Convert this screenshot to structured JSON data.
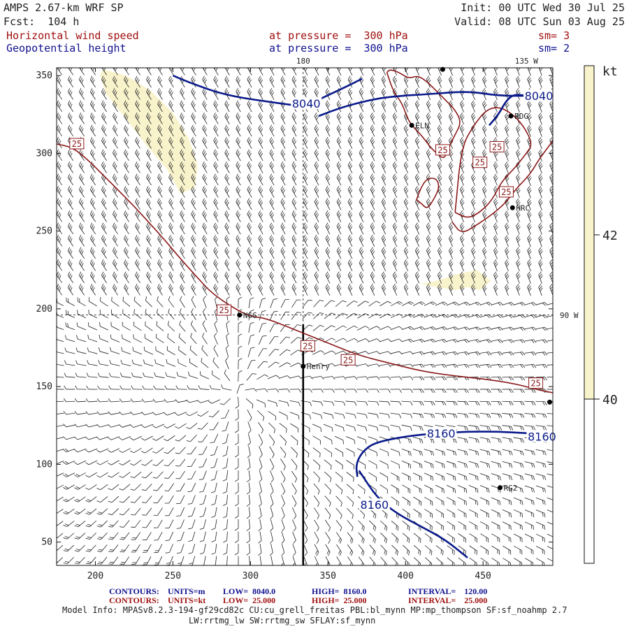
{
  "header": {
    "model": "AMPS 2.67-km WRF SP",
    "forecast": "Fcst:  104 h",
    "init": "Init: 00 UTC Wed 30 Jul 25",
    "valid": "Valid: 08 UTC Sun 03 Aug 25",
    "field1": "Horizontal wind speed",
    "field1_level": "at pressure =  300 hPa",
    "field1_sm": "sm= 3",
    "field2": "Geopotential height",
    "field2_level": "at pressure =  300 hPa",
    "field2_sm": "sm= 2"
  },
  "colors": {
    "wind_contour": "#8b1a1a",
    "height_contour": "#0a1a8a",
    "shade": "#f9f3cc",
    "barb": "#222222"
  },
  "chart_data": {
    "type": "contour",
    "xlim": [
      175,
      495
    ],
    "ylim": [
      35,
      355
    ],
    "x_ticks": [
      200,
      250,
      300,
      350,
      400,
      450
    ],
    "y_ticks": [
      50,
      100,
      150,
      200,
      250,
      300,
      350
    ],
    "meridian_labels": [
      {
        "text": "180",
        "x": 334,
        "y": 355
      },
      {
        "text": "135 W",
        "x": 478,
        "y": 355
      },
      {
        "text": "90 W",
        "x": 495,
        "y": 196
      }
    ],
    "meridians": [
      {
        "x": [
          334,
          334
        ],
        "y": [
          355,
          190
        ],
        "style": "dashed"
      },
      {
        "x": [
          175,
          495
        ],
        "y": [
          196,
          196
        ],
        "style": "dashed"
      },
      {
        "x": [
          334,
          334
        ],
        "y": [
          190,
          35
        ],
        "style": "solid"
      }
    ],
    "height_contours": [
      {
        "label": "8040",
        "x": [
          250,
          262,
          285,
          320,
          335,
          345,
          360,
          372
        ],
        "y": [
          350,
          345,
          337,
          332,
          330,
          335,
          342,
          348
        ]
      },
      {
        "label": "8040",
        "x": [
          344,
          360,
          380,
          396,
          415,
          440,
          460,
          480,
          495
        ],
        "y": [
          324,
          330,
          335,
          337,
          338,
          340,
          337,
          337,
          337
        ]
      },
      {
        "label": "8040",
        "x": [
          454,
          460,
          465,
          470,
          478,
          495
        ],
        "y": [
          318,
          325,
          334,
          338,
          337,
          337
        ]
      },
      {
        "label": "8160",
        "x": [
          369,
          368,
          372,
          380,
          400,
          420,
          440,
          460,
          480,
          495
        ],
        "y": [
          92,
          100,
          108,
          114,
          118,
          120,
          121,
          121,
          120,
          119
        ]
      },
      {
        "label": "8160",
        "x": [
          370,
          382,
          395,
          410,
          425,
          440
        ],
        "y": [
          96,
          78,
          68,
          60,
          52,
          40
        ]
      }
    ],
    "height_labels": [
      {
        "text": "8040",
        "x": 336,
        "y": 332
      },
      {
        "text": "8040",
        "x": 486,
        "y": 337
      },
      {
        "text": "8160",
        "x": 423,
        "y": 120
      },
      {
        "text": "8160",
        "x": 488,
        "y": 118
      },
      {
        "text": "8160",
        "x": 380,
        "y": 74
      }
    ],
    "wind_contours": [
      {
        "label": "25",
        "x": [
          175,
          185,
          195,
          205,
          215,
          225,
          235,
          245,
          255,
          265,
          275,
          290,
          300,
          310,
          330,
          350,
          370,
          390,
          410,
          430,
          450,
          470,
          485,
          495
        ],
        "y": [
          306,
          304,
          296,
          286,
          276,
          266,
          255,
          244,
          232,
          221,
          210,
          200,
          195,
          194,
          186,
          178,
          170,
          165,
          160,
          157,
          155,
          152,
          148,
          146
        ]
      }
    ],
    "wind_islands": [
      {
        "x": [
          388,
          392,
          398,
          402,
          410,
          416,
          420,
          425,
          428,
          432,
          436,
          432,
          426,
          420,
          414,
          408,
          402,
          396,
          390,
          388
        ],
        "y": [
          352,
          340,
          332,
          320,
          312,
          304,
          300,
          296,
          304,
          312,
          320,
          328,
          334,
          340,
          346,
          350,
          348,
          352,
          354,
          352
        ]
      },
      {
        "x": [
          432,
          440,
          448,
          456,
          462,
          470,
          478,
          482,
          476,
          468,
          460,
          452,
          444,
          436,
          432
        ],
        "y": [
          262,
          258,
          262,
          270,
          282,
          290,
          300,
          306,
          318,
          326,
          330,
          328,
          318,
          304,
          262
        ]
      },
      {
        "x": [
          430,
          436,
          446,
          452,
          460,
          466,
          472,
          480,
          486,
          492,
          495
        ],
        "y": [
          256,
          248,
          254,
          258,
          264,
          270,
          278,
          286,
          296,
          304,
          308
        ]
      },
      {
        "x": [
          407,
          410,
          414,
          418,
          422,
          420,
          414,
          410,
          407
        ],
        "y": [
          270,
          268,
          264,
          270,
          278,
          284,
          284,
          278,
          270
        ]
      }
    ],
    "wind_labels": [
      {
        "text": "25",
        "x": 188,
        "y": 306
      },
      {
        "text": "25",
        "x": 283,
        "y": 199
      },
      {
        "text": "25",
        "x": 337,
        "y": 176
      },
      {
        "text": "25",
        "x": 363,
        "y": 167
      },
      {
        "text": "25",
        "x": 424,
        "y": 302
      },
      {
        "text": "25",
        "x": 448,
        "y": 294
      },
      {
        "text": "25",
        "x": 459,
        "y": 304
      },
      {
        "text": "25",
        "x": 465,
        "y": 275
      },
      {
        "text": "25",
        "x": 484,
        "y": 152
      }
    ],
    "shaded_regions": [
      {
        "x": [
          205,
          220,
          236,
          250,
          260,
          266,
          264,
          255,
          246,
          233,
          220,
          207,
          203
        ],
        "y": [
          354,
          350,
          340,
          326,
          310,
          292,
          278,
          274,
          290,
          305,
          322,
          338,
          350
        ]
      },
      {
        "x": [
          410,
          420,
          432,
          446,
          455,
          448,
          440,
          432,
          420,
          410
        ],
        "y": [
          216,
          218,
          222,
          225,
          218,
          212,
          214,
          212,
          214,
          216
        ]
      }
    ],
    "stations": [
      {
        "name": "",
        "x": 424,
        "y": 354
      },
      {
        "name": "RDG",
        "x": 468,
        "y": 324
      },
      {
        "name": "ELN",
        "x": 404,
        "y": 318
      },
      {
        "name": "HRC",
        "x": 469,
        "y": 265
      },
      {
        "name": "NGG",
        "x": 293,
        "y": 196
      },
      {
        "name": "Henry",
        "x": 334,
        "y": 163
      },
      {
        "name": "",
        "x": 493,
        "y": 140
      },
      {
        "name": "RG2",
        "x": 461,
        "y": 85
      }
    ],
    "colorbar": {
      "unit": "kt",
      "labels": [
        "42",
        "40"
      ],
      "colors": [
        "#f9f3cc",
        "#ffffff"
      ]
    }
  },
  "footer": {
    "c1_key": "CONTOURS:",
    "c1_units": "UNITS=m",
    "c1_low": "LOW=  8040.0",
    "c1_high": "HIGH=  8160.0",
    "c1_int": "INTERVAL=    120.00",
    "c2_key": "CONTOURS:",
    "c2_units": "UNITS=kt",
    "c2_low": "LOW=  25.000",
    "c2_high": "HIGH=  25.000",
    "c2_int": "INTERVAL=    25.000",
    "model_info": "Model Info: MPASv8.2.3-194-gf29cd82c CU:cu_grell_freitas PBL:bl_mynn MP:mp_thompson SF:sf_noahmp 2.7",
    "model_info2": "LW:rrtmg_lw SW:rrtmg_sw SFLAY:sf_mynn"
  }
}
